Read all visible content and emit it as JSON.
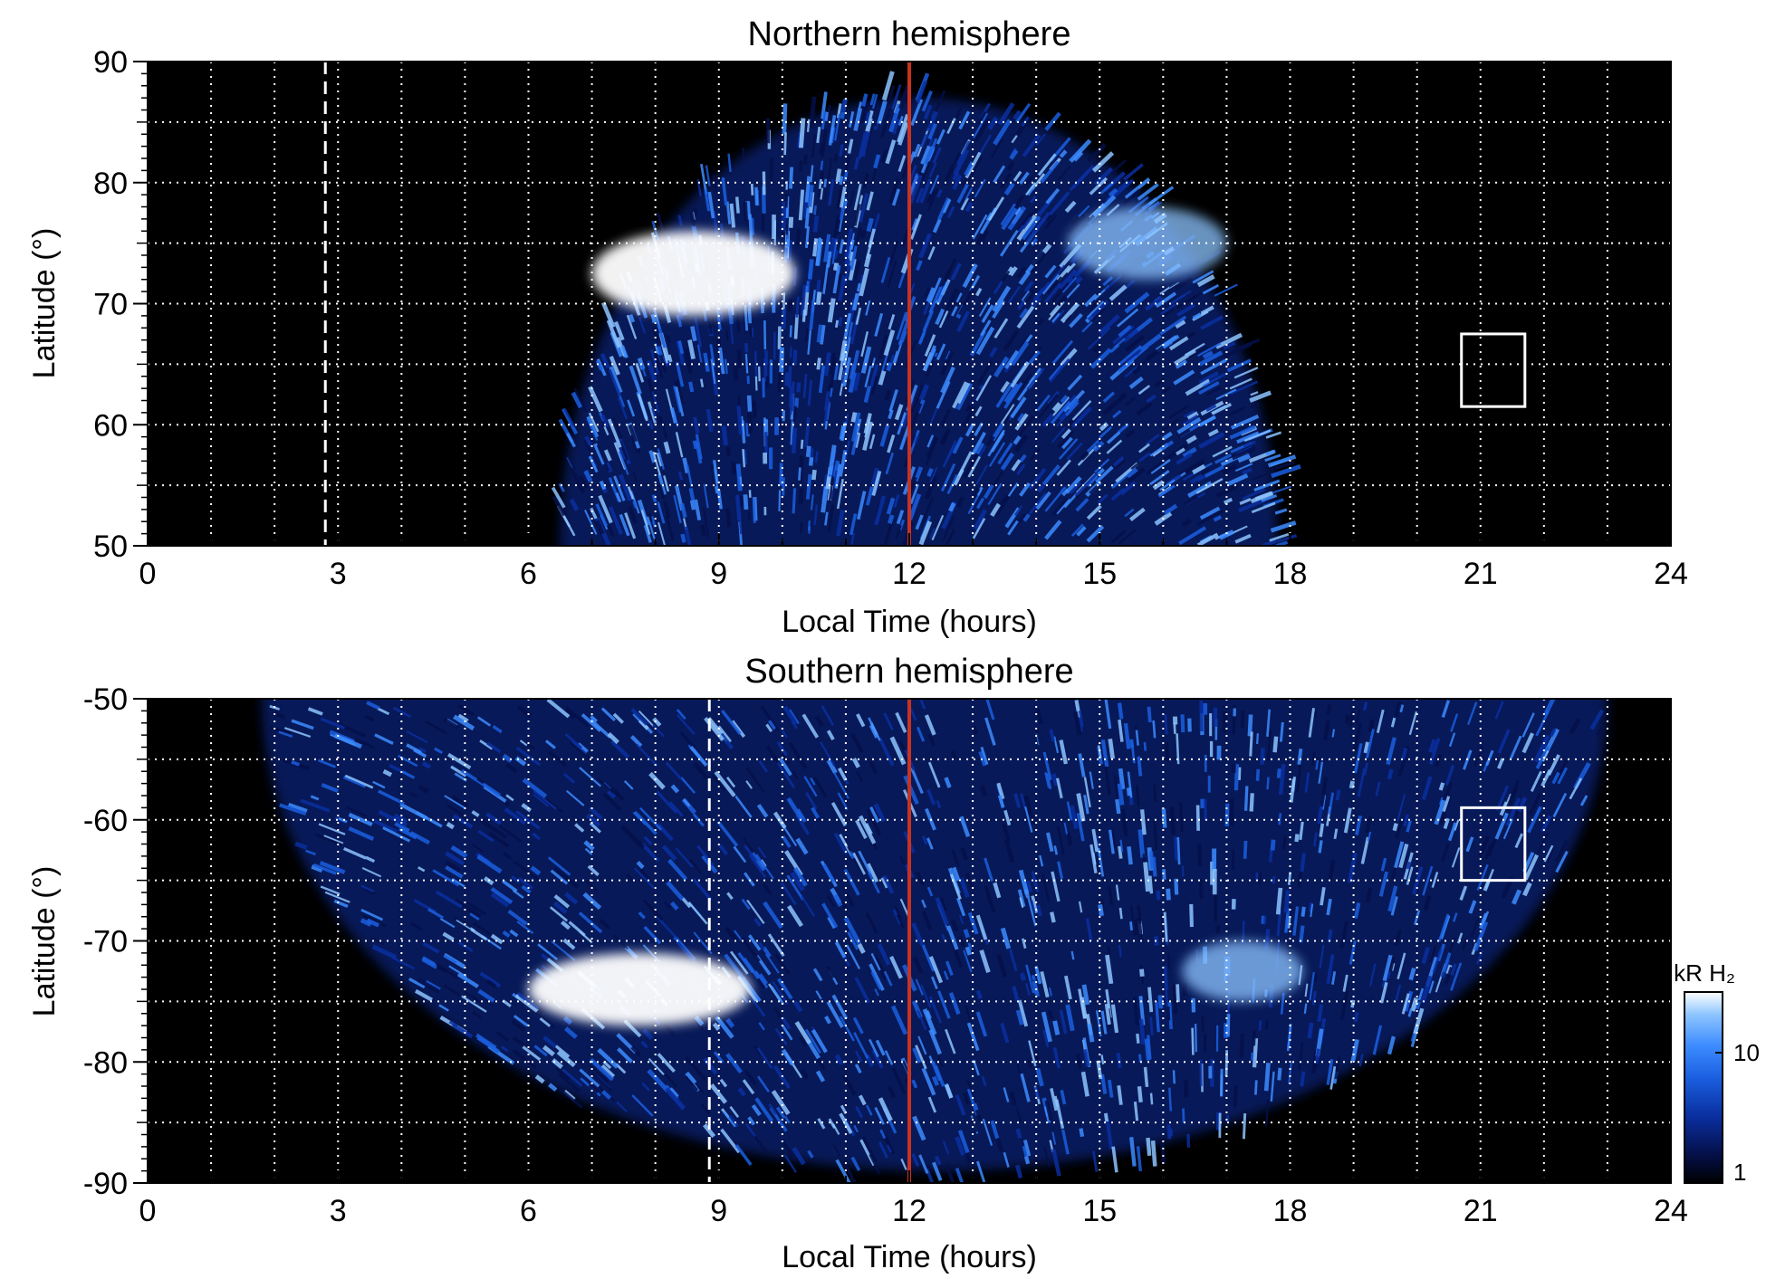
{
  "colors": {
    "background": "#000000",
    "grid": "#ffffff",
    "noon_line": "#c8321e",
    "marker": "#ffffff",
    "colormap": [
      "#000000",
      "#05104a",
      "#0a2fa0",
      "#1a5fe0",
      "#3d8cff",
      "#8cc4ff",
      "#ffffff"
    ]
  },
  "chart_data": [
    {
      "type": "heatmap",
      "title": "Northern hemisphere",
      "xlabel": "Local Time (hours)",
      "ylabel": "Latitude (°)",
      "xlim": [
        0,
        24
      ],
      "ylim": [
        50,
        90
      ],
      "xticks": [
        "0",
        "3",
        "6",
        "9",
        "12",
        "15",
        "18",
        "21",
        "24"
      ],
      "yticks": [
        "50",
        "60",
        "70",
        "80",
        "90"
      ],
      "grid": true,
      "grid_x_step_hours": 1,
      "grid_y_step_deg": 5,
      "noon_line_lt": 12,
      "dashed_line_lt": 2.8,
      "box": {
        "lt": [
          20.7,
          21.7
        ],
        "lat": [
          61.5,
          67.5
        ]
      },
      "emission_extent": {
        "lt": [
          6.5,
          17.8
        ],
        "lat": [
          50,
          87
        ]
      },
      "bright_regions": [
        {
          "lt": [
            7,
            10.2
          ],
          "lat": [
            69,
            76
          ],
          "level": "max"
        },
        {
          "lt": [
            14.5,
            17
          ],
          "lat": [
            72,
            78
          ],
          "level": "high"
        }
      ]
    },
    {
      "type": "heatmap",
      "title": "Southern hemisphere",
      "xlabel": "Local Time (hours)",
      "ylabel": "Latitude (°)",
      "xlim": [
        0,
        24
      ],
      "ylim": [
        -90,
        -50
      ],
      "xticks": [
        "0",
        "3",
        "6",
        "9",
        "12",
        "15",
        "18",
        "21",
        "24"
      ],
      "yticks": [
        "-50",
        "-60",
        "-70",
        "-80",
        "-90"
      ],
      "grid": true,
      "grid_x_step_hours": 1,
      "grid_y_step_deg": 5,
      "noon_line_lt": 12,
      "dashed_line_lt": 8.85,
      "box": {
        "lt": [
          20.7,
          21.7
        ],
        "lat": [
          -65,
          -59
        ]
      },
      "emission_extent": {
        "lt": [
          1.8,
          23
        ],
        "lat": [
          -89,
          -50
        ]
      },
      "bright_regions": [
        {
          "lt": [
            6,
            9.5
          ],
          "lat": [
            -77,
            -71
          ],
          "level": "max"
        },
        {
          "lt": [
            16.3,
            18.2
          ],
          "lat": [
            -75,
            -70
          ],
          "level": "high"
        }
      ]
    }
  ],
  "colorbar": {
    "label": "kR H₂",
    "ticks": [
      "10",
      "1"
    ],
    "scale": "log"
  }
}
